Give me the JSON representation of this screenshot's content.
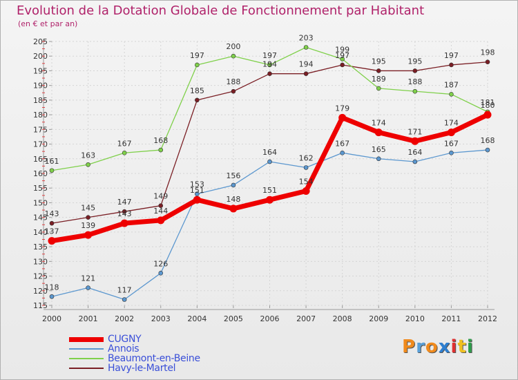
{
  "title": "Evolution de la Dotation Globale de Fonctionnement par Habitant",
  "subtitle": "(en € et par an)",
  "logo": {
    "letters": [
      "P",
      "r",
      "o",
      "x",
      "i",
      "t",
      "i"
    ],
    "colors": [
      "#f08a1c",
      "#5aa0d8",
      "#f08a1c",
      "#2e7fd0",
      "#e03030",
      "#f0c020",
      "#2e9d4a"
    ]
  },
  "chart_data": {
    "type": "line",
    "title": "Evolution de la Dotation Globale de Fonctionnement par Habitant",
    "subtitle": "(en € et par an)",
    "xlabel": "",
    "ylabel": "",
    "ylim": [
      115,
      205
    ],
    "yticks": [
      115,
      120,
      125,
      130,
      135,
      140,
      145,
      150,
      155,
      160,
      165,
      170,
      175,
      180,
      185,
      190,
      195,
      200,
      205
    ],
    "x": [
      "2000",
      "2001",
      "2002",
      "2003",
      "2004",
      "2005",
      "2006",
      "2007",
      "2008",
      "2009",
      "2010",
      "2011",
      "2012"
    ],
    "grid": true,
    "legend_position": "bottom-left",
    "series": [
      {
        "name": "Havy-le-Martel",
        "color": "#7a1e24",
        "values": [
          143,
          145,
          147,
          149,
          185,
          188,
          194,
          194,
          197,
          195,
          195,
          197,
          198
        ]
      },
      {
        "name": "Beaumont-en-Beine",
        "color": "#7fd04a",
        "values": [
          161,
          163,
          167,
          168,
          197,
          200,
          197,
          203,
          199,
          189,
          188,
          187,
          181
        ]
      },
      {
        "name": "Annois",
        "color": "#5b97cf",
        "values": [
          118,
          121,
          117,
          126,
          153,
          156,
          164,
          162,
          167,
          165,
          164,
          167,
          168
        ]
      },
      {
        "name": "CUGNY",
        "color": "#ee0000",
        "values": [
          137,
          139,
          143,
          144,
          151,
          148,
          151,
          154,
          179,
          174,
          171,
          174,
          180
        ]
      }
    ],
    "legend_order": [
      "CUGNY",
      "Annois",
      "Beaumont-en-Beine",
      "Havy-le-Martel"
    ]
  }
}
